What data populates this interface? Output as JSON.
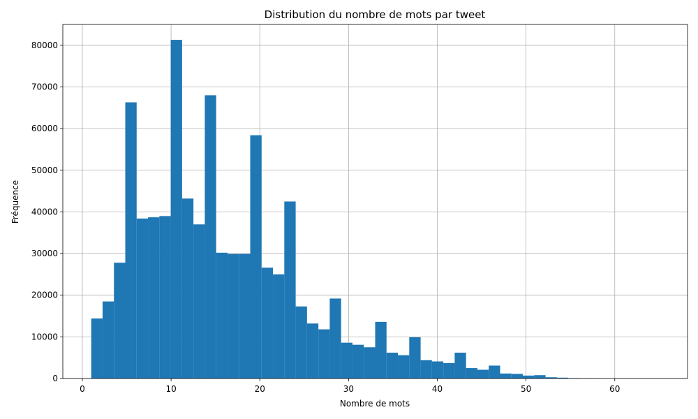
{
  "chart_data": {
    "type": "bar",
    "title": "Distribution du nombre de mots par tweet",
    "xlabel": "Nombre de mots",
    "ylabel": "Fréquence",
    "xlim": [
      -2.2,
      68.2
    ],
    "ylim": [
      0,
      85000
    ],
    "x_ticks": [
      0,
      10,
      20,
      30,
      40,
      50,
      60
    ],
    "y_ticks": [
      0,
      10000,
      20000,
      30000,
      40000,
      50000,
      60000,
      70000,
      80000
    ],
    "grid": true,
    "bar_color": "#1f77b4",
    "bins": {
      "start": 1,
      "end": 65,
      "count": 50,
      "values": [
        14400,
        18500,
        27800,
        66300,
        38400,
        38700,
        39000,
        81300,
        43200,
        37000,
        68000,
        30200,
        29900,
        29900,
        58400,
        26600,
        25000,
        42500,
        17300,
        13200,
        11800,
        19200,
        8600,
        8100,
        7500,
        13600,
        6200,
        5600,
        9900,
        4400,
        4100,
        3700,
        6200,
        2500,
        2100,
        3100,
        1200,
        1100,
        700,
        800,
        300,
        200,
        100,
        50,
        20,
        10,
        5,
        5,
        0,
        2
      ]
    }
  }
}
